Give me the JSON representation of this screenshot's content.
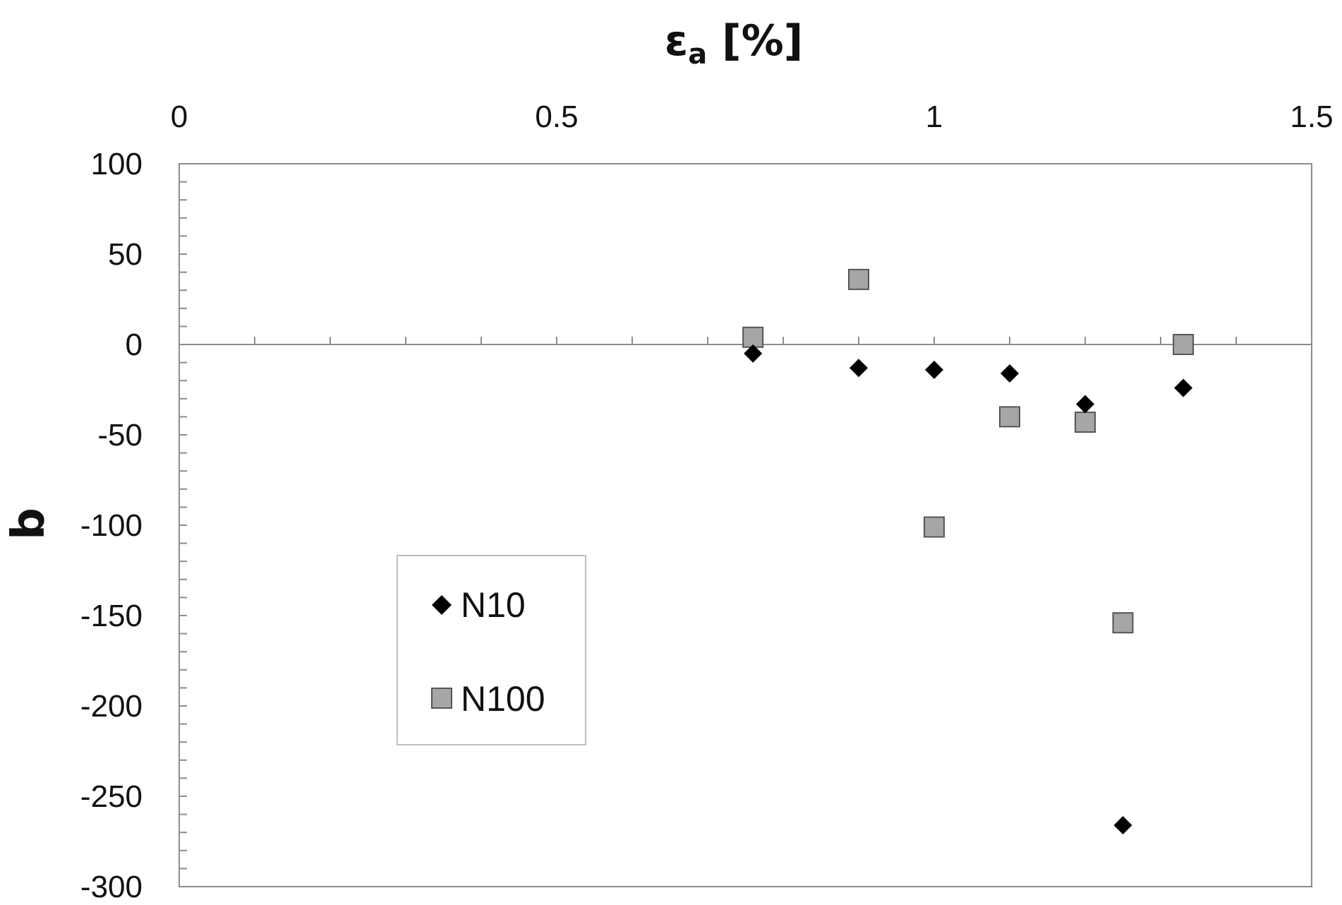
{
  "chart_data": {
    "type": "scatter",
    "title": "",
    "xlabel": {
      "main": "ε",
      "sub": "a",
      "suffix": " [%]"
    },
    "ylabel": "b",
    "x_axis_position": "top",
    "xlim": [
      0,
      1.5
    ],
    "ylim": [
      -300,
      100
    ],
    "x_ticks": [
      0,
      0.5,
      1,
      1.5
    ],
    "x_tick_labels": [
      "0",
      "0.5",
      "1",
      "1.5"
    ],
    "y_ticks": [
      100,
      50,
      0,
      -50,
      -100,
      -150,
      -200,
      -250,
      -300
    ],
    "y_tick_labels": [
      "100",
      "50",
      "0",
      "-50",
      "-100",
      "-150",
      "-200",
      "-250",
      "-300"
    ],
    "grid": false,
    "legend_position": "lower-left",
    "series": [
      {
        "name": "N10",
        "marker": "diamond",
        "color": "#000000",
        "points": [
          {
            "x": 0.76,
            "y": -5
          },
          {
            "x": 0.9,
            "y": -13
          },
          {
            "x": 1.0,
            "y": -14
          },
          {
            "x": 1.1,
            "y": -16
          },
          {
            "x": 1.2,
            "y": -33
          },
          {
            "x": 1.25,
            "y": -266
          },
          {
            "x": 1.33,
            "y": -24
          }
        ]
      },
      {
        "name": "N100",
        "marker": "square",
        "color": "#a6a6a6",
        "points": [
          {
            "x": 0.76,
            "y": 4
          },
          {
            "x": 0.9,
            "y": 36
          },
          {
            "x": 1.0,
            "y": -101
          },
          {
            "x": 1.1,
            "y": -40
          },
          {
            "x": 1.2,
            "y": -43
          },
          {
            "x": 1.25,
            "y": -154
          },
          {
            "x": 1.33,
            "y": 0
          }
        ]
      }
    ]
  }
}
